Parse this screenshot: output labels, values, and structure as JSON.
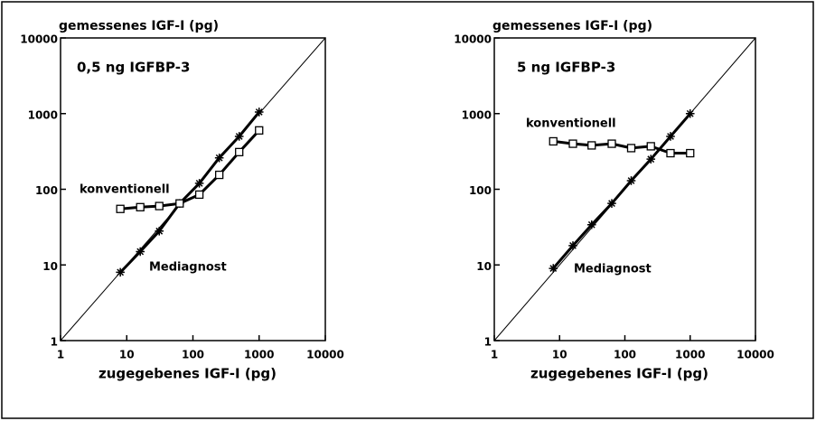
{
  "chart_data": [
    {
      "type": "line",
      "xscale": "log",
      "yscale": "log",
      "ylabel": "gemessenes IGF-I (pg)",
      "xlabel": "zugegebenes IGF-I (pg)",
      "annotation": "0,5 ng IGFBP-3",
      "x": [
        8,
        16,
        31,
        63,
        125,
        250,
        500,
        1000
      ],
      "xlim": [
        1,
        10000
      ],
      "ylim": [
        1,
        10000
      ],
      "xticks": [
        1,
        10,
        100,
        1000,
        10000
      ],
      "yticks": [
        1,
        10,
        100,
        1000,
        10000
      ],
      "series": [
        {
          "name": "Mediagnost",
          "color": "#000000",
          "marker": "star",
          "values": [
            8,
            15,
            28,
            65,
            120,
            260,
            500,
            1050
          ]
        },
        {
          "name": "konventionell",
          "color": "#000000",
          "marker": "square",
          "values": [
            55,
            58,
            60,
            65,
            85,
            155,
            310,
            600
          ]
        }
      ]
    },
    {
      "type": "line",
      "xscale": "log",
      "yscale": "log",
      "ylabel": "gemessenes IGF-I (pg)",
      "xlabel": "zugegebenes IGF-I (pg)",
      "annotation": "5 ng IGFBP-3",
      "x": [
        8,
        16,
        31,
        63,
        125,
        250,
        500,
        1000
      ],
      "xlim": [
        1,
        10000
      ],
      "ylim": [
        1,
        10000
      ],
      "xticks": [
        1,
        10,
        100,
        1000,
        10000
      ],
      "yticks": [
        1,
        10,
        100,
        1000,
        10000
      ],
      "series": [
        {
          "name": "Mediagnost",
          "color": "#000000",
          "marker": "star",
          "values": [
            9,
            18,
            34,
            65,
            130,
            250,
            500,
            1000
          ]
        },
        {
          "name": "konventionell",
          "color": "#000000",
          "marker": "square",
          "values": [
            430,
            400,
            380,
            400,
            350,
            370,
            300,
            300
          ]
        }
      ]
    }
  ]
}
